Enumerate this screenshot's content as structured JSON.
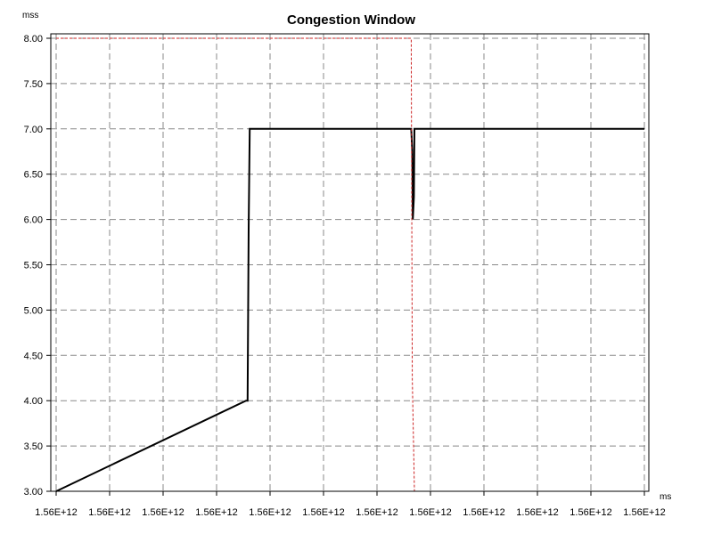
{
  "chart_data": {
    "type": "line",
    "title": "Congestion Window",
    "ylabel": "mss",
    "xlabel": "ms",
    "ylim": [
      3.0,
      8.0
    ],
    "y_ticks": [
      "3.00",
      "3.50",
      "4.00",
      "4.50",
      "5.00",
      "5.50",
      "6.00",
      "6.50",
      "7.00",
      "7.50",
      "8.00"
    ],
    "x_tick_labels": [
      "1.56E+12",
      "1.56E+12",
      "1.56E+12",
      "1.56E+12",
      "1.56E+12",
      "1.56E+12",
      "1.56E+12",
      "1.56E+12",
      "1.56E+12",
      "1.56E+12",
      "1.56E+12",
      "1.56E+12"
    ],
    "x_tick_positions": [
      0,
      1,
      2,
      3,
      4,
      5,
      6,
      7,
      8,
      9,
      10,
      11
    ],
    "xlim": [
      0,
      11
    ],
    "grid": true,
    "series": [
      {
        "color": "#000000",
        "style": "solid",
        "x": [
          0.0,
          3.55,
          3.58,
          3.6,
          3.62,
          6.64,
          6.66,
          6.67,
          6.69,
          6.7,
          11.0
        ],
        "y": [
          3.0,
          4.0,
          4.0,
          5.9,
          7.0,
          7.0,
          6.75,
          6.0,
          6.25,
          7.0,
          7.0
        ]
      },
      {
        "color": "#cc2222",
        "style": "dashed",
        "x": [
          0.0,
          6.64,
          6.66,
          6.7,
          11.0
        ],
        "y": [
          8.0,
          8.0,
          4.25,
          3.0,
          3.0
        ]
      }
    ]
  }
}
